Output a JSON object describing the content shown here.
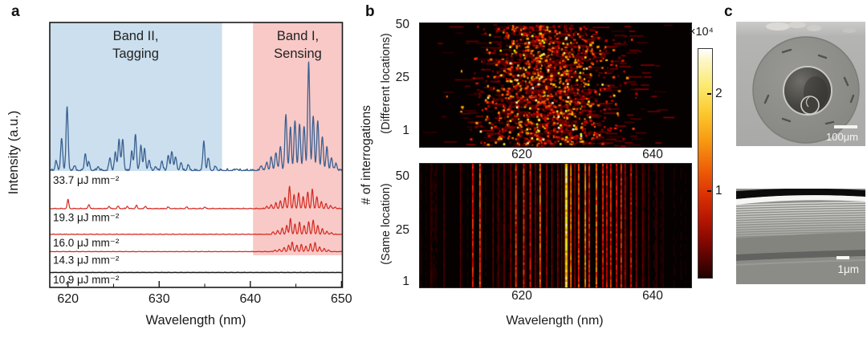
{
  "panels": {
    "a": "a",
    "b": "b",
    "c": "c"
  },
  "colorbar": {
    "multiplier": "×10⁴",
    "ticks": [
      2,
      1
    ],
    "colormap": "hot"
  },
  "panel_c": {
    "images": [
      {
        "name": "fiber-cross-section-sem",
        "scalebar": "100μm"
      },
      {
        "name": "multilayer-cladding-sem",
        "scalebar": "1μm",
        "layers_visible": 14
      }
    ]
  },
  "chart_data": [
    {
      "id": "lasing-spectra",
      "type": "line",
      "xlabel": "Wavelength (nm)",
      "ylabel": "Intensity (a.u.)",
      "xlim": [
        618,
        650.1
      ],
      "xticks": [
        620,
        630,
        640,
        650
      ],
      "xticks_minor": [
        625,
        635,
        645
      ],
      "bands": [
        {
          "label": [
            "Band II,",
            "Tagging"
          ],
          "nm": [
            618,
            636.9
          ],
          "color": "#cbdfee"
        },
        {
          "label": [
            "Band I,",
            "Sensing"
          ],
          "nm": [
            640.3,
            650.1
          ],
          "color": "#f8c9c7"
        }
      ],
      "series": [
        {
          "label": "33.7 μJ mm⁻²",
          "color": "#3a6191",
          "peaks": [
            [
              618.7,
              12
            ],
            [
              619.3,
              40
            ],
            [
              619.9,
              80
            ],
            [
              620.7,
              6
            ],
            [
              621.9,
              21
            ],
            [
              622.3,
              10
            ],
            [
              623.3,
              5
            ],
            [
              624.6,
              16
            ],
            [
              625.2,
              22
            ],
            [
              625.6,
              38
            ],
            [
              626.0,
              39
            ],
            [
              627.0,
              23
            ],
            [
              627.4,
              45
            ],
            [
              628.0,
              31
            ],
            [
              628.4,
              26
            ],
            [
              628.9,
              13
            ],
            [
              629.6,
              5
            ],
            [
              630.3,
              12
            ],
            [
              631.0,
              19
            ],
            [
              631.4,
              23
            ],
            [
              631.8,
              17
            ],
            [
              632.4,
              10
            ],
            [
              633.2,
              7
            ],
            [
              634.9,
              36
            ],
            [
              635.4,
              15
            ],
            [
              636.2,
              5
            ],
            [
              638.5,
              2
            ],
            [
              641.2,
              6
            ],
            [
              641.8,
              10
            ],
            [
              642.3,
              16
            ],
            [
              642.8,
              22
            ],
            [
              643.3,
              30
            ],
            [
              643.9,
              70
            ],
            [
              644.4,
              52
            ],
            [
              644.9,
              62
            ],
            [
              645.4,
              58
            ],
            [
              645.9,
              55
            ],
            [
              646.4,
              135
            ],
            [
              646.9,
              68
            ],
            [
              647.4,
              62
            ],
            [
              647.9,
              42
            ],
            [
              648.4,
              28
            ],
            [
              648.9,
              16
            ],
            [
              649.4,
              9
            ]
          ]
        },
        {
          "label": "19.3 μJ mm⁻²",
          "color": "#d4271e",
          "peaks": [
            [
              620.0,
              11
            ],
            [
              622.3,
              5
            ],
            [
              624.5,
              3
            ],
            [
              625.5,
              3
            ],
            [
              626.5,
              3
            ],
            [
              627.5,
              4
            ],
            [
              628.5,
              3
            ],
            [
              631.0,
              2
            ],
            [
              633.0,
              2
            ],
            [
              635.0,
              2
            ],
            [
              641.8,
              3
            ],
            [
              642.3,
              5
            ],
            [
              642.8,
              7
            ],
            [
              643.3,
              10
            ],
            [
              643.8,
              14
            ],
            [
              644.3,
              28
            ],
            [
              644.8,
              17
            ],
            [
              645.3,
              20
            ],
            [
              645.8,
              15
            ],
            [
              646.3,
              21
            ],
            [
              646.8,
              24
            ],
            [
              647.3,
              15
            ],
            [
              647.8,
              9
            ],
            [
              648.3,
              6
            ],
            [
              648.8,
              4
            ],
            [
              649.3,
              2
            ]
          ]
        },
        {
          "label": "16.0 μJ mm⁻²",
          "color": "#d4271e",
          "peaks": [
            [
              642.5,
              3
            ],
            [
              643.0,
              5
            ],
            [
              643.5,
              8
            ],
            [
              644.0,
              11
            ],
            [
              644.4,
              20
            ],
            [
              644.9,
              13
            ],
            [
              645.4,
              15
            ],
            [
              645.9,
              11
            ],
            [
              646.4,
              16
            ],
            [
              646.9,
              18
            ],
            [
              647.4,
              11
            ],
            [
              647.9,
              7
            ],
            [
              648.4,
              4
            ],
            [
              648.9,
              2
            ]
          ]
        },
        {
          "label": "14.3 μJ mm⁻²",
          "color": "#d4271e",
          "peaks": [
            [
              642.7,
              2
            ],
            [
              643.2,
              3
            ],
            [
              643.7,
              5
            ],
            [
              644.2,
              8
            ],
            [
              644.6,
              12
            ],
            [
              645.1,
              8
            ],
            [
              645.6,
              9
            ],
            [
              646.1,
              7
            ],
            [
              646.6,
              10
            ],
            [
              647.1,
              11
            ],
            [
              647.6,
              6
            ],
            [
              648.1,
              4
            ],
            [
              648.6,
              2
            ]
          ]
        },
        {
          "label": "10,9 μJ mm⁻²",
          "color": "#1a1a1a",
          "peaks": []
        }
      ]
    },
    {
      "id": "heatmap-different-locations",
      "type": "heatmap",
      "ylabel": "# of interrogations",
      "sublabel": "(Different locations)",
      "yticks": [
        50,
        25,
        1
      ],
      "xticks": [
        620,
        640
      ],
      "xlim": [
        604.3,
        645.8
      ],
      "rows": 50,
      "colormap": "hot",
      "clim_x1e4": [
        0,
        2.5
      ],
      "pattern": "random bright speckles, densest near 615-635 nm",
      "speckle": {
        "seed": 7,
        "n_dots": 1500,
        "n_streaks": 380,
        "n_bright": 70,
        "center_frac": 0.47,
        "sigma_frac": 0.29
      }
    },
    {
      "id": "heatmap-same-location",
      "type": "heatmap",
      "sublabel": "(Same location)",
      "xlabel": "Wavelength (nm)",
      "yticks": [
        50,
        25,
        1
      ],
      "xticks": [
        620,
        640
      ],
      "xlim": [
        604.3,
        645.8
      ],
      "rows": 50,
      "colormap": "hot",
      "pattern": "persistent vertical lasing lines",
      "lines_nm_value": [
        [
          606.0,
          0.25
        ],
        [
          608.0,
          0.3
        ],
        [
          610.5,
          0.35
        ],
        [
          612.4,
          0.9
        ],
        [
          613.5,
          1.05
        ],
        [
          615.5,
          0.4
        ],
        [
          616.3,
          0.35
        ],
        [
          617.2,
          0.5
        ],
        [
          618.2,
          0.55
        ],
        [
          619.0,
          1.0
        ],
        [
          620.2,
          0.9
        ],
        [
          621.2,
          0.8
        ],
        [
          622.0,
          0.5
        ],
        [
          622.7,
          1.15
        ],
        [
          623.7,
          0.7
        ],
        [
          624.5,
          0.5
        ],
        [
          625.4,
          0.55
        ],
        [
          626.0,
          0.4
        ],
        [
          626.7,
          1.9
        ],
        [
          627.4,
          1.2
        ],
        [
          628.0,
          0.6
        ],
        [
          628.6,
          1.0
        ],
        [
          629.6,
          1.25
        ],
        [
          630.2,
          0.9
        ],
        [
          631.3,
          1.2
        ],
        [
          632.3,
          0.9
        ],
        [
          632.9,
          0.8
        ],
        [
          633.5,
          0.9
        ],
        [
          634.4,
          0.8
        ],
        [
          635.1,
          0.9
        ],
        [
          635.7,
          0.7
        ],
        [
          636.6,
          0.8
        ],
        [
          637.4,
          0.6
        ],
        [
          638.4,
          0.4
        ],
        [
          639.3,
          0.3
        ],
        [
          640.5,
          0.25
        ],
        [
          641.5,
          0.2
        ]
      ]
    }
  ]
}
